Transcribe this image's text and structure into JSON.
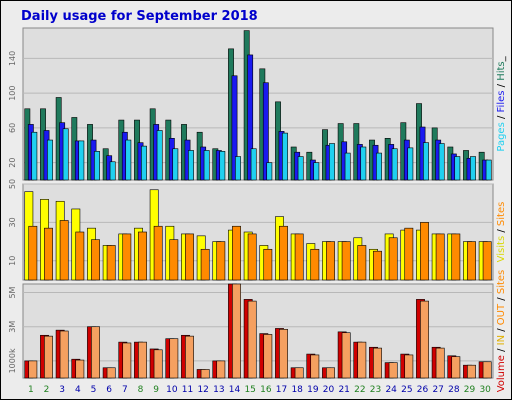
{
  "chart_data": {
    "type": "bar",
    "title": "Daily usage for September 2018",
    "days": [
      "1",
      "2",
      "3",
      "4",
      "5",
      "6",
      "7",
      "8",
      "9",
      "10",
      "11",
      "12",
      "13",
      "14",
      "15",
      "16",
      "17",
      "18",
      "19",
      "20",
      "21",
      "22",
      "23",
      "24",
      "25",
      "26",
      "27",
      "28",
      "29",
      "30"
    ],
    "weekend_days": [
      "1",
      "2",
      "8",
      "9",
      "15",
      "16",
      "22",
      "23",
      "29",
      "30"
    ],
    "panels": [
      {
        "id": "hits",
        "ylim": [
          0,
          175
        ],
        "ticks": [
          "20",
          "60",
          "100",
          "140"
        ],
        "tick_values": [
          20,
          60,
          100,
          140
        ],
        "series": [
          {
            "name": "Hits",
            "color": "#1f7a5c",
            "values": [
              82,
              82,
              95,
              72,
              64,
              36,
              69,
              69,
              82,
              69,
              64,
              55,
              36,
              151,
              172,
              128,
              90,
              38,
              32,
              58,
              65,
              65,
              46,
              48,
              66,
              88,
              60,
              38,
              34,
              32
            ]
          },
          {
            "name": "Files",
            "color": "#1a1af0",
            "values": [
              64,
              57,
              66,
              45,
              46,
              28,
              55,
              43,
              64,
              48,
              46,
              38,
              34,
              120,
              144,
              112,
              56,
              32,
              23,
              40,
              44,
              41,
              40,
              41,
              46,
              61,
              46,
              30,
              25,
              23
            ]
          },
          {
            "name": "Pages",
            "color": "#20d0f0",
            "values": [
              55,
              46,
              59,
              45,
              33,
              21,
              46,
              39,
              57,
              36,
              34,
              34,
              33,
              27,
              36,
              20,
              54,
              27,
              20,
              42,
              31,
              38,
              31,
              36,
              37,
              43,
              42,
              27,
              27,
              23
            ]
          }
        ],
        "legend": [
          {
            "text": "Pages",
            "color": "#20d0f0"
          },
          {
            "text": " / ",
            "color": "#000000"
          },
          {
            "text": "Files",
            "color": "#1a1af0"
          },
          {
            "text": " / ",
            "color": "#000000"
          },
          {
            "text": "Hits",
            "color": "#1f7a5c"
          },
          {
            "text": "_",
            "color": "#000000"
          }
        ]
      },
      {
        "id": "visits",
        "ylim": [
          0,
          50
        ],
        "ticks": [
          "10",
          "30",
          "50"
        ],
        "tick_values": [
          10,
          30,
          50
        ],
        "series": [
          {
            "name": "Visits",
            "color": "#ffff00",
            "values": [
              46,
              42,
              41,
              37,
              27,
              18,
              24,
              27,
              47,
              28,
              24,
              23,
              20,
              26,
              25,
              18,
              33,
              24,
              19,
              20,
              20,
              22,
              16,
              24,
              26,
              26,
              24,
              24,
              20,
              20
            ]
          },
          {
            "name": "Sites",
            "color": "#ff8a00",
            "values": [
              28,
              27,
              31,
              25,
              21,
              18,
              24,
              25,
              28,
              21,
              24,
              16,
              20,
              28,
              24,
              16,
              28,
              24,
              16,
              20,
              20,
              18,
              15,
              22,
              27,
              30,
              24,
              24,
              20,
              20
            ]
          }
        ],
        "legend": [
          {
            "text": "Visits",
            "color": "#d8d800"
          },
          {
            "text": " / ",
            "color": "#000000"
          },
          {
            "text": "Sites",
            "color": "#ff8a00"
          }
        ]
      },
      {
        "id": "volume",
        "ylim": [
          0,
          5500
        ],
        "ticks": [
          "1000k",
          "3M",
          "5M"
        ],
        "tick_values": [
          1000,
          3000,
          5000
        ],
        "series": [
          {
            "name": "IN",
            "color": "#d00000",
            "values": [
              1000,
              2500,
              2800,
              1100,
              3000,
              600,
              2100,
              2100,
              1700,
              2300,
              2500,
              500,
              1000,
              5500,
              4600,
              2600,
              2900,
              600,
              1400,
              600,
              2700,
              2100,
              1800,
              900,
              1400,
              4600,
              1800,
              1300,
              750,
              950
            ]
          },
          {
            "name": "OUT",
            "color": "#f5a060",
            "values": [
              1000,
              2450,
              2750,
              1050,
              3000,
              600,
              2050,
              2100,
              1650,
              2300,
              2450,
              500,
              1000,
              5500,
              4500,
              2550,
              2850,
              600,
              1350,
              600,
              2650,
              2100,
              1750,
              900,
              1350,
              4500,
              1750,
              1250,
              750,
              950
            ]
          }
        ],
        "legend": [
          {
            "text": "Volume",
            "color": "#d00000"
          },
          {
            "text": " / ",
            "color": "#000000"
          },
          {
            "text": "IN",
            "color": "#e0b000"
          },
          {
            "text": " / ",
            "color": "#000000"
          },
          {
            "text": "OUT",
            "color": "#ff8a00"
          },
          {
            "text": " / ",
            "color": "#000000"
          },
          {
            "text": "Sites",
            "color": "#ff8a00"
          }
        ]
      }
    ]
  },
  "colors": {
    "title": "#0000cc",
    "panel_bg": "#dedede",
    "frame_bg": "#ececec",
    "weekday_label": "#0000aa",
    "weekend_label": "#208020"
  }
}
